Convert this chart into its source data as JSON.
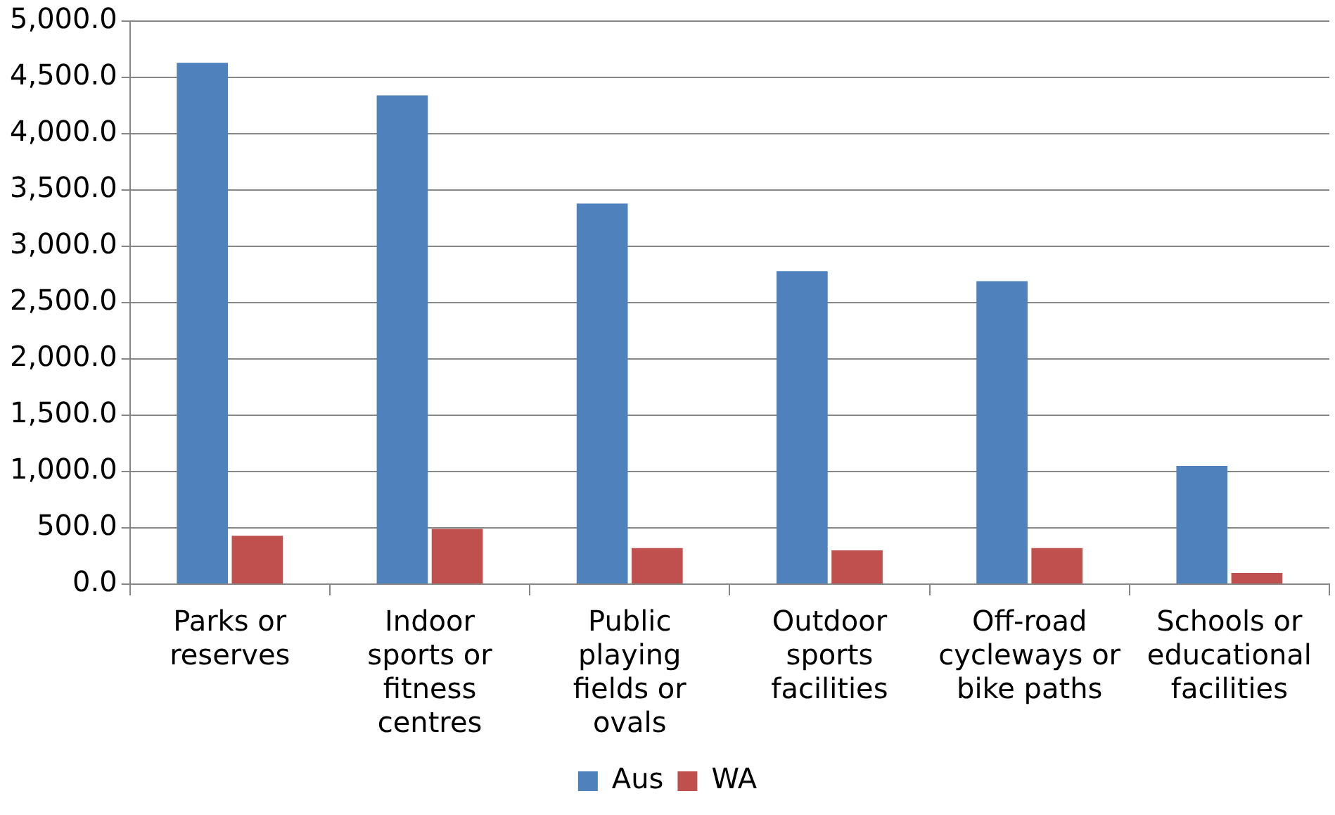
{
  "chart_data": {
    "type": "bar",
    "categories": [
      "Parks or reserves",
      "Indoor sports or fitness centres",
      "Public playing fields or ovals",
      "Outdoor sports facilities",
      "Off-road cycleways or bike paths",
      "Schools or educational facilities"
    ],
    "series": [
      {
        "name": "Aus",
        "color": "#4f81bd",
        "values": [
          4630,
          4340,
          3380,
          2780,
          2690,
          1050
        ]
      },
      {
        "name": "WA",
        "color": "#c0504d",
        "values": [
          430,
          490,
          320,
          300,
          320,
          100
        ]
      }
    ],
    "ylim": [
      0,
      5000
    ],
    "yticks": [
      {
        "value": 0,
        "label": "0.0"
      },
      {
        "value": 500,
        "label": "500.0"
      },
      {
        "value": 1000,
        "label": "1,000.0"
      },
      {
        "value": 1500,
        "label": "1,500.0"
      },
      {
        "value": 2000,
        "label": "2,000.0"
      },
      {
        "value": 2500,
        "label": "2,500.0"
      },
      {
        "value": 3000,
        "label": "3,000.0"
      },
      {
        "value": 3500,
        "label": "3,500.0"
      },
      {
        "value": 4000,
        "label": "4,000.0"
      },
      {
        "value": 4500,
        "label": "4,500.0"
      },
      {
        "value": 5000,
        "label": "5,000.0"
      }
    ],
    "grid": "y",
    "legend": "bottom"
  }
}
